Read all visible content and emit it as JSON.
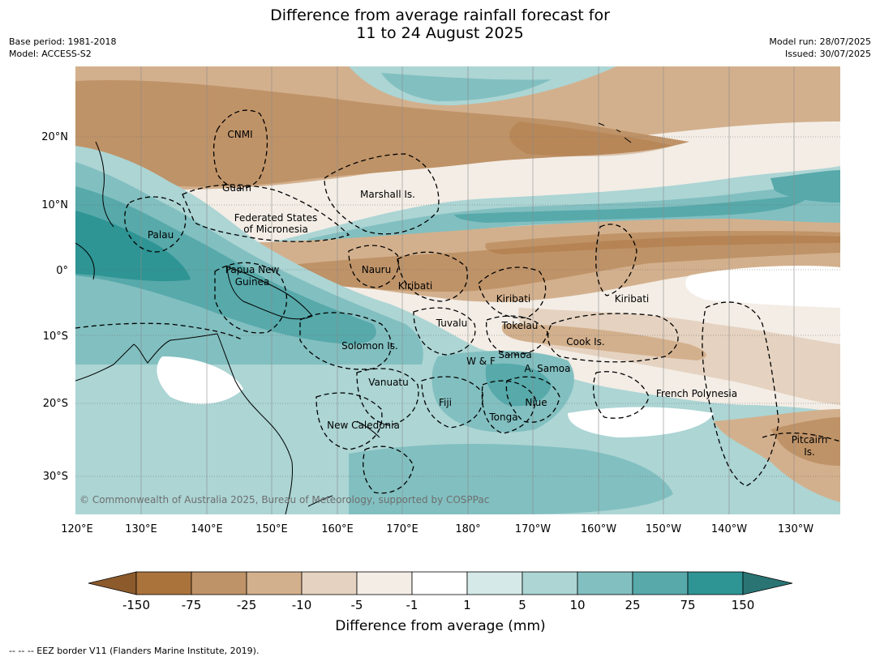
{
  "title": {
    "line1": "Difference from average rainfall forecast for",
    "line2": "11 to 24 August 2025"
  },
  "meta": {
    "base_period": "Base period: 1981-2018",
    "model": "Model: ACCESS-S2",
    "model_run": "Model run: 28/07/2025",
    "issued": "Issued: 30/07/2025"
  },
  "axes": {
    "lon_labels": [
      "120°E",
      "130°E",
      "140°E",
      "150°E",
      "160°E",
      "170°E",
      "180°",
      "170°W",
      "160°W",
      "150°W",
      "140°W",
      "130°W"
    ],
    "lat_labels": [
      "20°N",
      "10°N",
      "0°",
      "10°S",
      "20°S",
      "30°S"
    ]
  },
  "places": [
    {
      "name": "CNMI"
    },
    {
      "name": "Guam"
    },
    {
      "name": "Marshall Is."
    },
    {
      "name": "Federated States"
    },
    {
      "name": "of Micronesia"
    },
    {
      "name": "Palau"
    },
    {
      "name": "Papua New"
    },
    {
      "name": "Guinea"
    },
    {
      "name": "Nauru"
    },
    {
      "name": "Kiribati"
    },
    {
      "name": "Kiribati"
    },
    {
      "name": "Kiribati"
    },
    {
      "name": "Tuvalu"
    },
    {
      "name": "Tokelau"
    },
    {
      "name": "Solomon Is."
    },
    {
      "name": "Cook Is."
    },
    {
      "name": "W & F"
    },
    {
      "name": "Samoa"
    },
    {
      "name": "A. Samoa"
    },
    {
      "name": "Vanuatu"
    },
    {
      "name": "Fiji"
    },
    {
      "name": "Niue"
    },
    {
      "name": "French Polynesia"
    },
    {
      "name": "Tonga"
    },
    {
      "name": "New Caledonia"
    },
    {
      "name": "Pitcairn"
    },
    {
      "name": "Is."
    }
  ],
  "copyright": "© Commonwealth of Australia 2025, Bureau of Meteorology, supported by COSPPac",
  "colorbar": {
    "title": "Difference from average (mm)",
    "tick_labels": [
      "-150",
      "-75",
      "-25",
      "-10",
      "-5",
      "-1",
      "1",
      "5",
      "10",
      "25",
      "75",
      "150"
    ],
    "colors": [
      "#8c5a2b",
      "#ab733c",
      "#bf9368",
      "#d3b08d",
      "#e5d2c0",
      "#f3ede6",
      "#ffffff",
      "#d5e9e8",
      "#acd5d4",
      "#82bfc0",
      "#57a9aa",
      "#2e9494",
      "#2a7474"
    ]
  },
  "footnote": "--  --  -- EEZ border V11 (Flanders Marine Institute, 2019)."
}
